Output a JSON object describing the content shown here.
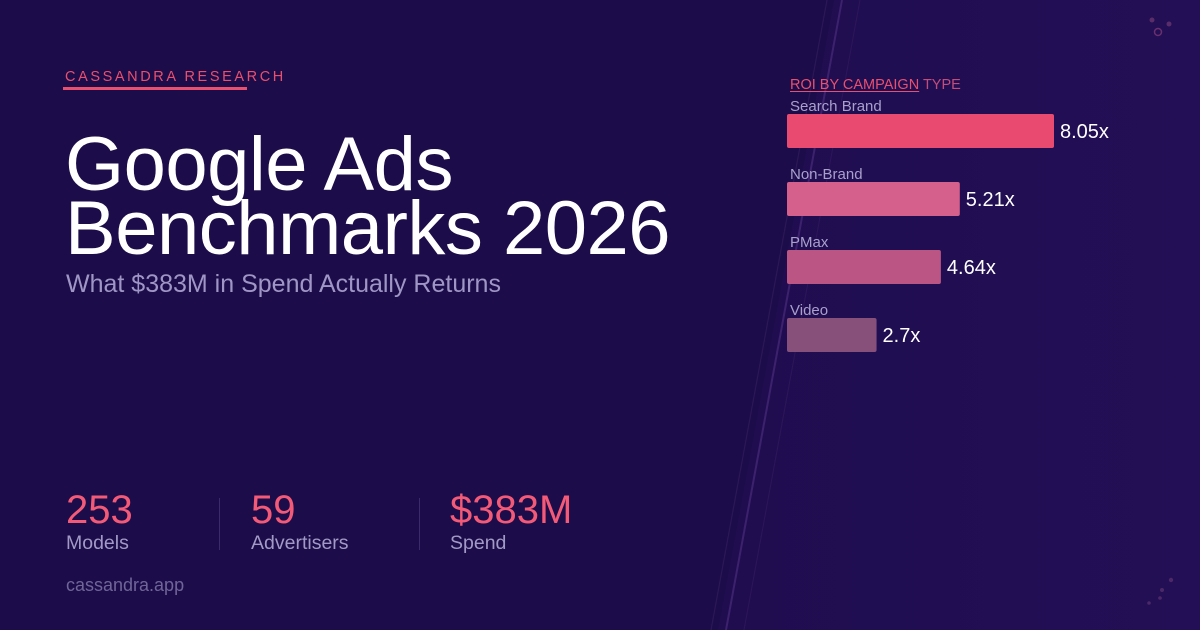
{
  "brand": {
    "name": "CASSANDRA RESEARCH"
  },
  "hero": {
    "title_line1": "Google Ads",
    "title_line2": "Benchmarks 2026",
    "subtitle": "What $383M in Spend Actually Returns"
  },
  "stats": [
    {
      "value": "253",
      "label": "Models"
    },
    {
      "value": "59",
      "label": "Advertisers"
    },
    {
      "value": "$383M",
      "label": "Spend"
    }
  ],
  "footer": {
    "url": "cassandra.app"
  },
  "chart_title": {
    "emphasis": "ROI BY CAMPAIGN",
    "rest": " TYPE"
  },
  "colors": {
    "background": "#1c0c49",
    "accent": "#e8506f",
    "bar_colors": [
      "#e84b6f",
      "#d4608b",
      "#bb5584",
      "#86507b"
    ]
  },
  "chart_data": {
    "type": "bar",
    "orientation": "horizontal",
    "title": "ROI BY CAMPAIGN TYPE",
    "categories": [
      "Search Brand",
      "Non-Brand",
      "PMax",
      "Video"
    ],
    "values": [
      8.05,
      5.21,
      4.64,
      2.7
    ],
    "value_labels": [
      "8.05x",
      "5.21x",
      "4.64x",
      "2.7x"
    ],
    "xlim": [
      0,
      8.05
    ],
    "grid": false,
    "legend": "none"
  }
}
